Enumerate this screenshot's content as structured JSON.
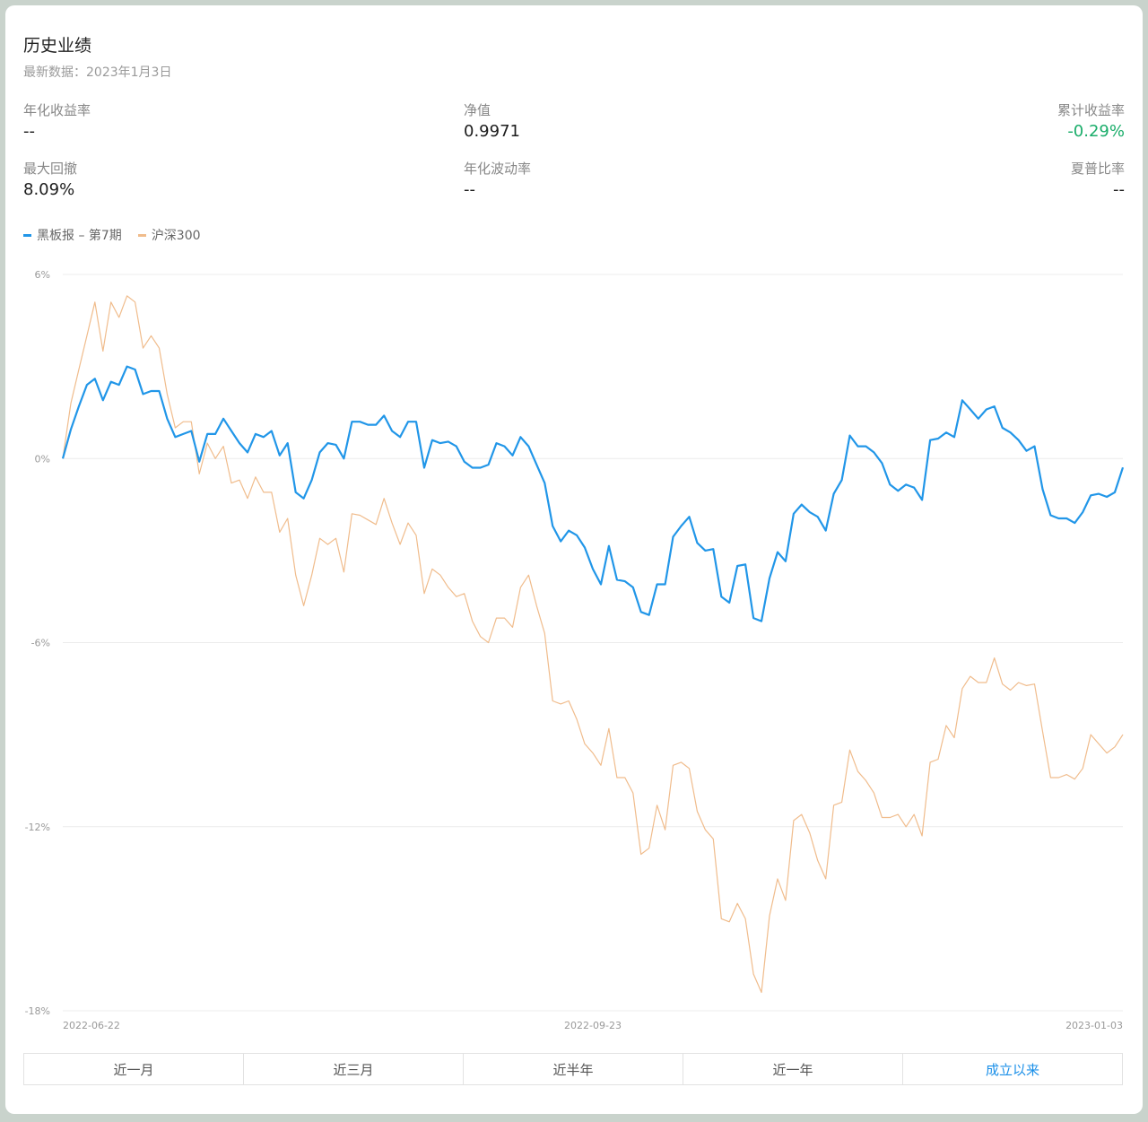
{
  "header": {
    "title": "历史业绩",
    "subtitle": "最新数据：2023年1月3日"
  },
  "metrics": [
    {
      "label": "年化收益率",
      "value": "--"
    },
    {
      "label": "净值",
      "value": "0.9971"
    },
    {
      "label": "累计收益率",
      "value": "-0.29%"
    },
    {
      "label": "最大回撤",
      "value": "8.09%"
    },
    {
      "label": "年化波动率",
      "value": "--"
    },
    {
      "label": "夏普比率",
      "value": "--"
    }
  ],
  "colors": {
    "fund_line": "#2196e8",
    "index_line": "#f0bc8c",
    "positive_return": "#1aad6a",
    "active_tab": "#1a8fe8"
  },
  "tabs": [
    {
      "label": "近一月",
      "active": false
    },
    {
      "label": "近三月",
      "active": false
    },
    {
      "label": "近半年",
      "active": false
    },
    {
      "label": "近一年",
      "active": false
    },
    {
      "label": "成立以来",
      "active": true
    }
  ],
  "chart_data": {
    "type": "line",
    "legend_position": "top-left",
    "grid": true,
    "ylim": [
      -18,
      6
    ],
    "yticks": [
      6,
      0,
      -6,
      -12,
      -18
    ],
    "ytick_labels": [
      "6%",
      "0%",
      "-6%",
      "-12%",
      "-18%"
    ],
    "x_tick_labels": [
      "2022-06-22",
      "2022-09-23",
      "2023-01-03"
    ],
    "series": [
      {
        "name": "黑板报 – 第7期",
        "values": [
          0.0,
          0.95,
          1.7,
          2.4,
          2.6,
          1.9,
          2.5,
          2.4,
          3.0,
          2.9,
          2.1,
          2.2,
          2.2,
          1.3,
          0.7,
          0.8,
          0.9,
          -0.1,
          0.8,
          0.8,
          1.3,
          0.9,
          0.5,
          0.2,
          0.8,
          0.7,
          0.9,
          0.1,
          0.5,
          -1.1,
          -1.3,
          -0.7,
          0.2,
          0.5,
          0.45,
          0.0,
          1.2,
          1.2,
          1.1,
          1.1,
          1.4,
          0.9,
          0.7,
          1.2,
          1.2,
          -0.3,
          0.6,
          0.5,
          0.55,
          0.4,
          -0.1,
          -0.3,
          -0.3,
          -0.2,
          0.5,
          0.4,
          0.1,
          0.7,
          0.4,
          -0.2,
          -0.8,
          -2.2,
          -2.7,
          -2.35,
          -2.5,
          -2.9,
          -3.6,
          -4.1,
          -2.85,
          -3.95,
          -4.0,
          -4.2,
          -5.0,
          -5.1,
          -4.1,
          -4.1,
          -2.55,
          -2.2,
          -1.9,
          -2.75,
          -3.0,
          -2.95,
          -4.5,
          -4.7,
          -3.5,
          -3.45,
          -5.2,
          -5.3,
          -3.9,
          -3.05,
          -3.35,
          -1.8,
          -1.5,
          -1.75,
          -1.9,
          -2.35,
          -1.15,
          -0.7,
          0.75,
          0.4,
          0.4,
          0.2,
          -0.15,
          -0.85,
          -1.05,
          -0.85,
          -0.95,
          -1.35,
          0.6,
          0.65,
          0.85,
          0.7,
          1.9,
          1.6,
          1.3,
          1.6,
          1.7,
          1.0,
          0.85,
          0.6,
          0.25,
          0.4,
          -1.0,
          -1.85,
          -1.95,
          -1.95,
          -2.1,
          -1.75,
          -1.2,
          -1.15,
          -1.25,
          -1.1,
          -0.29
        ]
      },
      {
        "name": "沪深300",
        "values": [
          0.0,
          1.8,
          2.9,
          4.0,
          5.1,
          3.5,
          5.1,
          4.6,
          5.3,
          5.1,
          3.6,
          4.0,
          3.6,
          2.1,
          1.0,
          1.2,
          1.2,
          -0.5,
          0.5,
          0.0,
          0.4,
          -0.8,
          -0.7,
          -1.3,
          -0.6,
          -1.1,
          -1.1,
          -2.4,
          -1.95,
          -3.8,
          -4.8,
          -3.8,
          -2.6,
          -2.8,
          -2.6,
          -3.7,
          -1.8,
          -1.85,
          -2.0,
          -2.15,
          -1.3,
          -2.1,
          -2.8,
          -2.1,
          -2.5,
          -4.4,
          -3.6,
          -3.8,
          -4.2,
          -4.5,
          -4.4,
          -5.3,
          -5.8,
          -6.0,
          -5.2,
          -5.2,
          -5.5,
          -4.2,
          -3.8,
          -4.8,
          -5.7,
          -7.9,
          -8.0,
          -7.9,
          -8.5,
          -9.3,
          -9.6,
          -10.0,
          -8.8,
          -10.4,
          -10.4,
          -10.9,
          -12.9,
          -12.7,
          -11.3,
          -12.1,
          -10.0,
          -9.9,
          -10.1,
          -11.5,
          -12.1,
          -12.4,
          -15.0,
          -15.1,
          -14.5,
          -15.0,
          -16.8,
          -17.4,
          -14.9,
          -13.7,
          -14.4,
          -11.8,
          -11.6,
          -12.2,
          -13.1,
          -13.7,
          -11.3,
          -11.2,
          -9.5,
          -10.2,
          -10.5,
          -10.9,
          -11.7,
          -11.7,
          -11.6,
          -12.0,
          -11.6,
          -12.3,
          -9.9,
          -9.8,
          -8.7,
          -9.1,
          -7.5,
          -7.1,
          -7.3,
          -7.3,
          -6.5,
          -7.35,
          -7.55,
          -7.3,
          -7.4,
          -7.35,
          -8.9,
          -10.4,
          -10.4,
          -10.3,
          -10.45,
          -10.1,
          -9.0,
          -9.3,
          -9.6,
          -9.4,
          -9.0
        ]
      }
    ]
  }
}
